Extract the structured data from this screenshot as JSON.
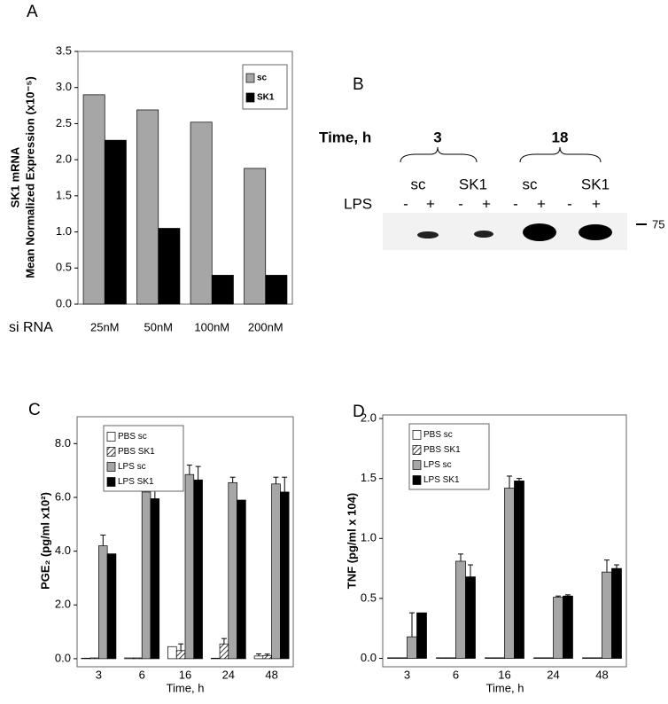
{
  "chart_data": [
    {
      "type": "bar",
      "panel": "A",
      "ylabel": [
        "SK1 mRNA",
        "Mean Normalized Expression (x10⁻⁵)"
      ],
      "xlabel": "si RNA",
      "categories": [
        "25nM",
        "50nM",
        "100nM",
        "200nM"
      ],
      "series": [
        {
          "name": "sc",
          "color": "#a6a6a6",
          "values": [
            2.9,
            2.69,
            2.52,
            1.88
          ]
        },
        {
          "name": "SK1",
          "color": "#000000",
          "values": [
            2.27,
            1.05,
            0.4,
            0.4
          ]
        }
      ],
      "ylim": [
        0,
        3.5
      ],
      "yticks": [
        {
          "value": 0,
          "label": "0.0"
        },
        {
          "value": 0.5,
          "label": "0.5"
        },
        {
          "value": 1,
          "label": "1.0"
        },
        {
          "value": 1.5,
          "label": "1.5"
        },
        {
          "value": 2,
          "label": "2.0"
        },
        {
          "value": 2.5,
          "label": "2.5"
        },
        {
          "value": 3,
          "label": "3.0"
        },
        {
          "value": 3.5,
          "label": "3.5"
        }
      ],
      "legend": "upper right"
    },
    {
      "type": "bar",
      "panel": "C",
      "ylabel": [
        "PGE₂ (pg/ml x10²)"
      ],
      "xlabel": "Time, h",
      "categories": [
        "3",
        "6",
        "16",
        "24",
        "48"
      ],
      "series": [
        {
          "name": "PBS sc",
          "color": "#ffffff",
          "values": [
            0.02,
            0.03,
            0.45,
            0.02,
            0.1
          ],
          "errors": [
            0,
            0,
            0,
            0,
            0.08
          ]
        },
        {
          "name": "PBS SK1",
          "color": "#ffffff",
          "pattern": "hatch",
          "values": [
            0.03,
            0.03,
            0.3,
            0.55,
            0.12
          ],
          "errors": [
            0,
            0,
            0.25,
            0.2,
            0.05
          ]
        },
        {
          "name": "LPS sc",
          "color": "#a6a6a6",
          "values": [
            4.2,
            6.2,
            6.85,
            6.55,
            6.5
          ],
          "errors": [
            0.4,
            0.2,
            0.35,
            0.2,
            0.25
          ]
        },
        {
          "name": "LPS SK1",
          "color": "#000000",
          "values": [
            3.9,
            5.95,
            6.65,
            5.9,
            6.2
          ],
          "errors": [
            0,
            0.55,
            0.5,
            0,
            0.55
          ]
        }
      ],
      "ylim": [
        -0.3,
        9
      ],
      "yticks": [
        {
          "value": 0,
          "label": "0.0"
        },
        {
          "value": 2,
          "label": "2.0"
        },
        {
          "value": 4,
          "label": "4.0"
        },
        {
          "value": 6,
          "label": "6.0"
        },
        {
          "value": 8,
          "label": "8.0"
        }
      ],
      "legend": "upper left"
    },
    {
      "type": "bar",
      "panel": "D",
      "ylabel": [
        "TNF (pg/ml x 104)"
      ],
      "xlabel": "Time, h",
      "categories": [
        "3",
        "6",
        "16",
        "24",
        "48"
      ],
      "series": [
        {
          "name": "PBS sc",
          "color": "#ffffff",
          "values": [
            0.005,
            0.005,
            0.005,
            0.005,
            0.005
          ],
          "errors": [
            0,
            0,
            0,
            0,
            0
          ]
        },
        {
          "name": "PBS SK1",
          "color": "#ffffff",
          "pattern": "hatch",
          "values": [
            0.005,
            0.005,
            0.005,
            0.005,
            0.005
          ],
          "errors": [
            0,
            0,
            0,
            0,
            0
          ]
        },
        {
          "name": "LPS sc",
          "color": "#a6a6a6",
          "values": [
            0.18,
            0.81,
            1.42,
            0.51,
            0.72
          ],
          "errors": [
            0.2,
            0.06,
            0.1,
            0.01,
            0.1
          ]
        },
        {
          "name": "LPS SK1",
          "color": "#000000",
          "values": [
            0.38,
            0.68,
            1.48,
            0.52,
            0.75
          ],
          "errors": [
            0,
            0.1,
            0.02,
            0.01,
            0.03
          ]
        }
      ],
      "ylim": [
        -0.07,
        2.03
      ],
      "yticks": [
        {
          "value": 0,
          "label": "0.0"
        },
        {
          "value": 0.5,
          "label": "0.5"
        },
        {
          "value": 1,
          "label": "1.0"
        },
        {
          "value": 1.5,
          "label": "1.5"
        },
        {
          "value": 2,
          "label": "2.0"
        }
      ],
      "legend": "upper left"
    }
  ],
  "blot": {
    "panel": "B",
    "time_label": "Time, h",
    "times": [
      "3",
      "18"
    ],
    "groups": [
      "sc",
      "SK1",
      "sc",
      "SK1"
    ],
    "treatment_label": "LPS",
    "lanes": [
      "-",
      "+",
      "-",
      "+",
      "-",
      "+",
      "-",
      "+"
    ],
    "marker": "75"
  }
}
